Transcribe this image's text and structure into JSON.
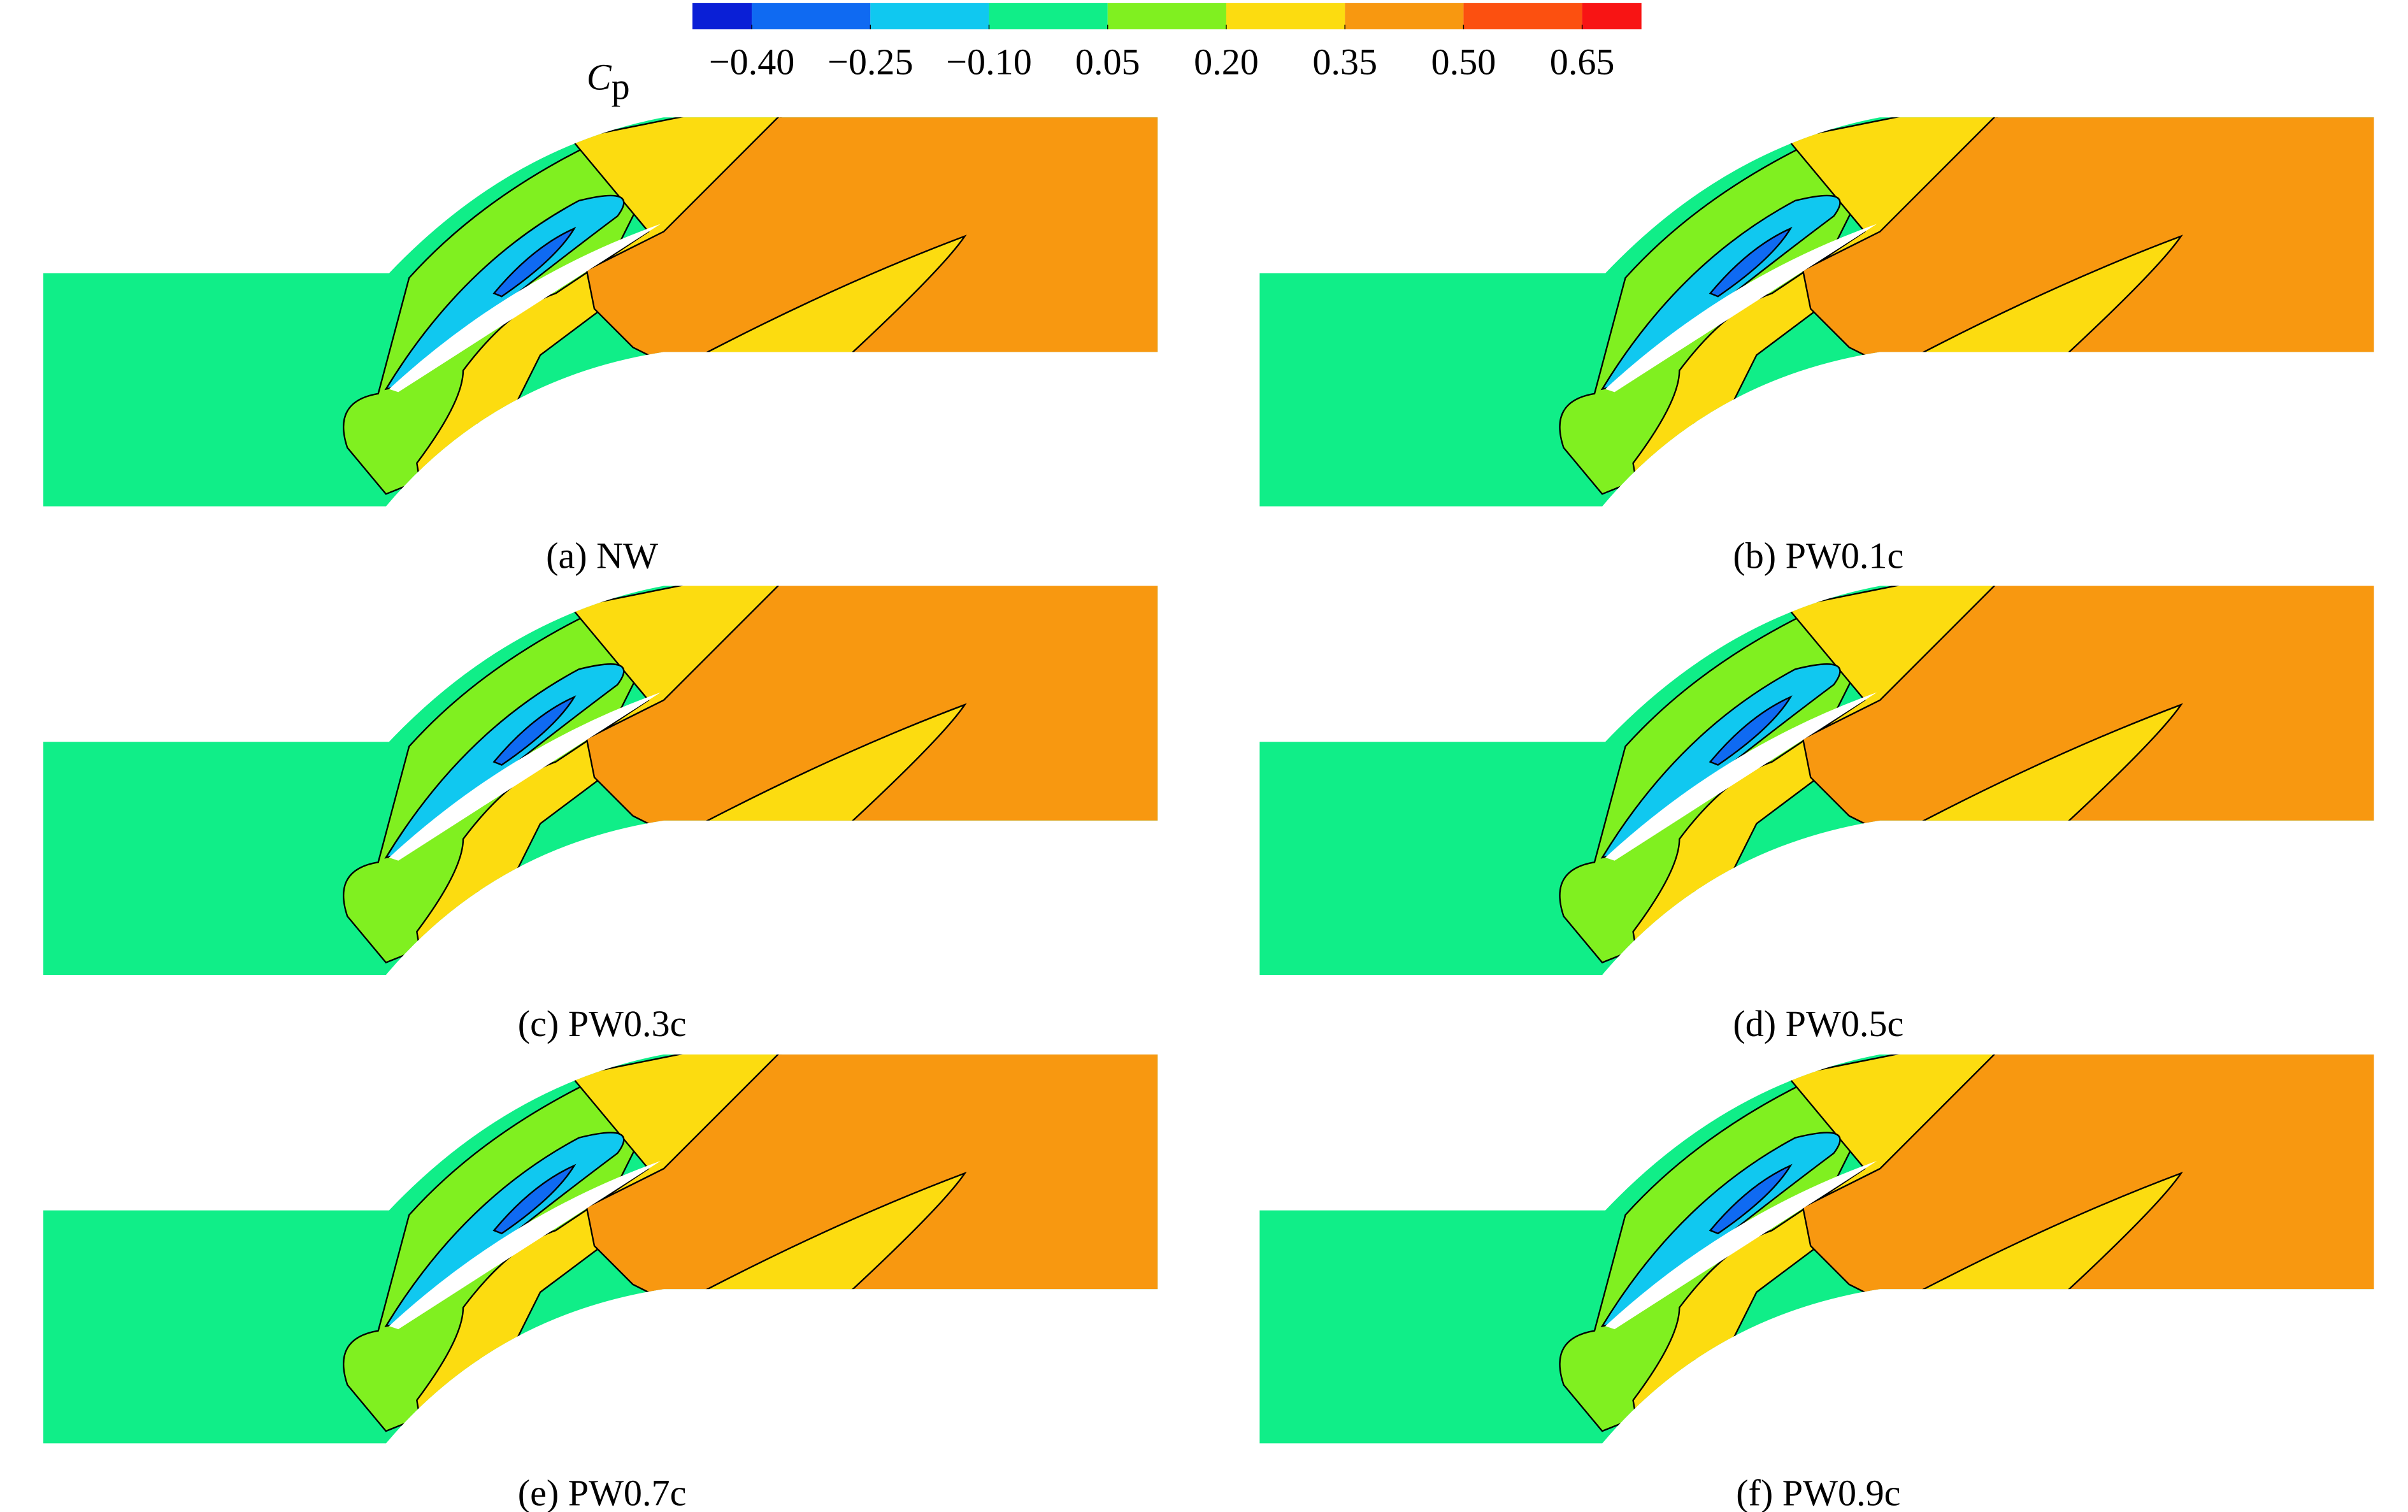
{
  "colorbar": {
    "title": "C",
    "subscript": "p",
    "colors": [
      "#0a1fd6",
      "#0f6af2",
      "#10c8f0",
      "#10ee88",
      "#80f020",
      "#fcdc10",
      "#f89810",
      "#fc5010",
      "#f81414"
    ],
    "ticks": [
      {
        "value": -0.4,
        "label": "−0.40"
      },
      {
        "value": -0.25,
        "label": "−0.25"
      },
      {
        "value": -0.1,
        "label": "−0.10"
      },
      {
        "value": 0.05,
        "label": "0.05"
      },
      {
        "value": 0.2,
        "label": "0.20"
      },
      {
        "value": 0.35,
        "label": "0.35"
      },
      {
        "value": 0.5,
        "label": "0.50"
      },
      {
        "value": 0.65,
        "label": "0.65"
      }
    ]
  },
  "panels": [
    {
      "caption": "(a) NW"
    },
    {
      "caption": "(b) PW0.1c"
    },
    {
      "caption": "(c) PW0.3c"
    },
    {
      "caption": "(d) PW0.5c"
    },
    {
      "caption": "(e) PW0.7c"
    },
    {
      "caption": "(f) PW0.9c"
    }
  ]
}
